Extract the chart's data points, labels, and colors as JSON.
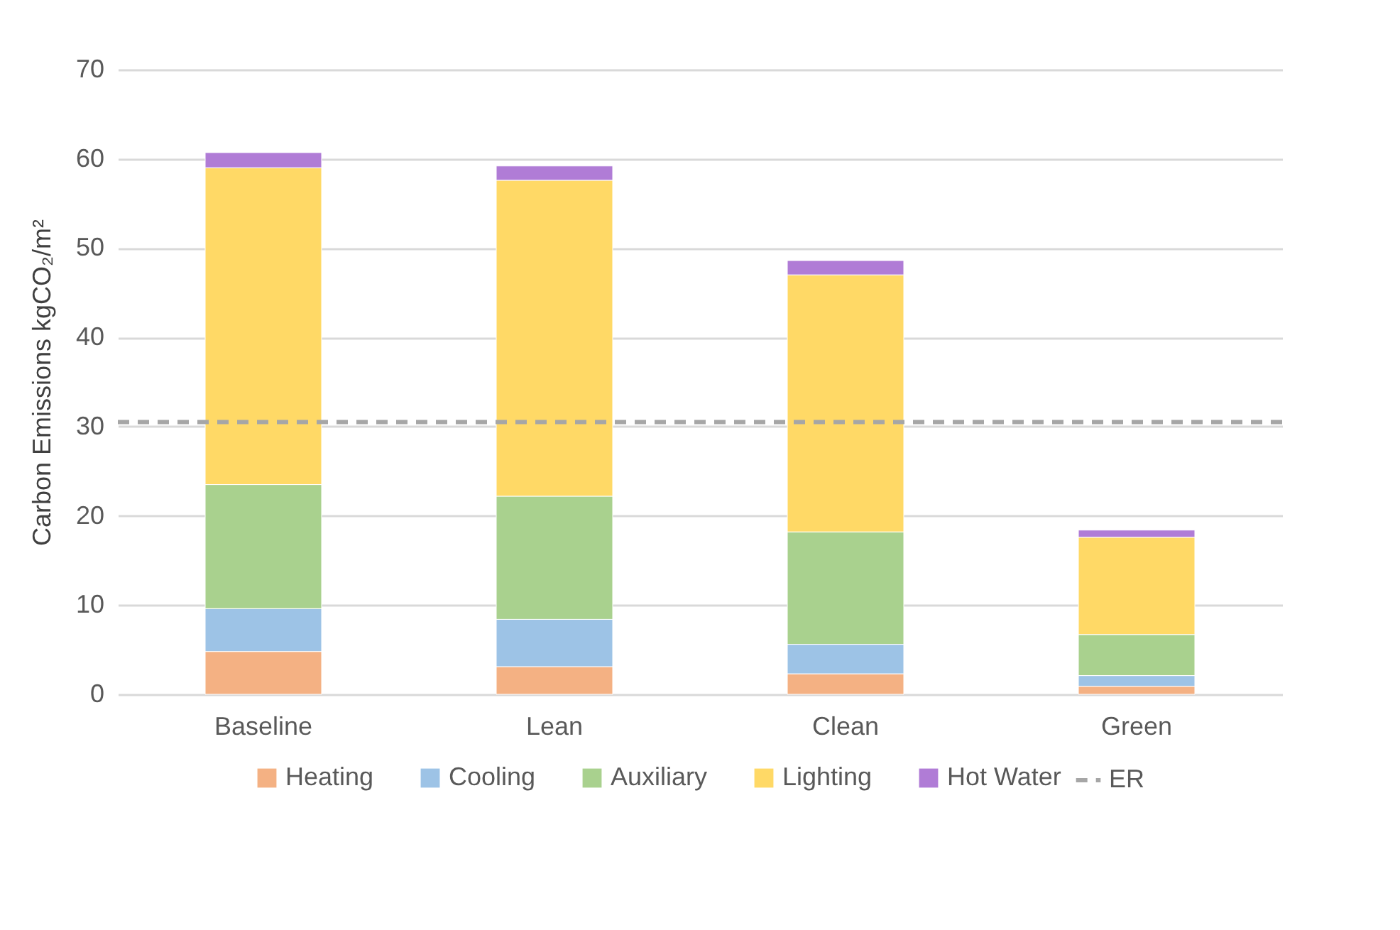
{
  "chart_data": {
    "type": "bar",
    "stacked": true,
    "categories": [
      "Baseline",
      "Lean",
      "Clean",
      "Green"
    ],
    "ylabel": "Carbon Emissions kgCO₂/m²",
    "ylim": [
      0,
      70
    ],
    "yticks": [
      0,
      10,
      20,
      30,
      40,
      50,
      60,
      70
    ],
    "grid": "y",
    "legend": "bottom",
    "series": [
      {
        "name": "Heating",
        "color": "#f4b183",
        "values": [
          4.8,
          3.1,
          2.3,
          0.9
        ]
      },
      {
        "name": "Cooling",
        "color": "#9dc3e6",
        "values": [
          4.8,
          5.3,
          3.3,
          1.2
        ]
      },
      {
        "name": "Auxiliary",
        "color": "#a9d18e",
        "values": [
          13.9,
          13.8,
          12.6,
          4.6
        ]
      },
      {
        "name": "Lighting",
        "color": "#ffd966",
        "values": [
          35.5,
          35.4,
          28.8,
          10.9
        ]
      },
      {
        "name": "Hot Water",
        "color": "#b07cd6",
        "values": [
          1.7,
          1.6,
          1.6,
          0.8
        ]
      }
    ],
    "ref_lines": [
      {
        "axis": "y",
        "value": 30.5,
        "label": "ER",
        "color": "#a6a6a6",
        "line_style": "dashed"
      }
    ]
  }
}
